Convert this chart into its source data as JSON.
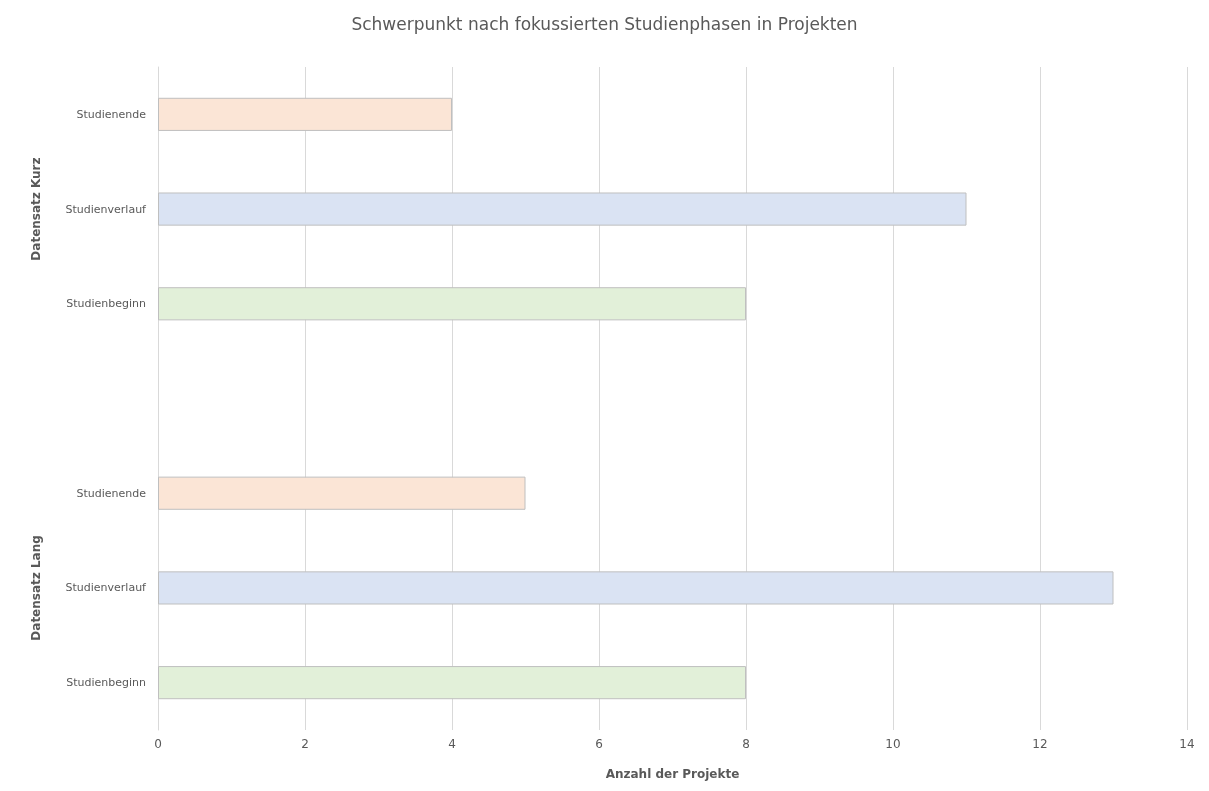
{
  "chart_data": {
    "type": "bar",
    "orientation": "horizontal",
    "title": "Schwerpunkt nach fokussierten Studienphasen in Projekten",
    "xlabel": "Anzahl der Projekte",
    "categories": [
      "Studienende",
      "Studienverlauf",
      "Studienbeginn",
      null,
      "Studienende",
      "Studienverlauf",
      "Studienbeginn"
    ],
    "values": [
      4,
      11,
      8,
      null,
      5,
      13,
      8
    ],
    "colors": [
      "#fbe5d6",
      "#dae3f3",
      "#e2f0d9",
      null,
      "#fbe5d6",
      "#dae3f3",
      "#e2f0d9"
    ],
    "annotations": [
      "Datensatz Kurz",
      "Datensatz Lang"
    ],
    "xlim": [
      0,
      14
    ],
    "xticks": [
      0,
      2,
      4,
      6,
      8,
      10,
      12,
      14
    ],
    "grid": "x"
  }
}
